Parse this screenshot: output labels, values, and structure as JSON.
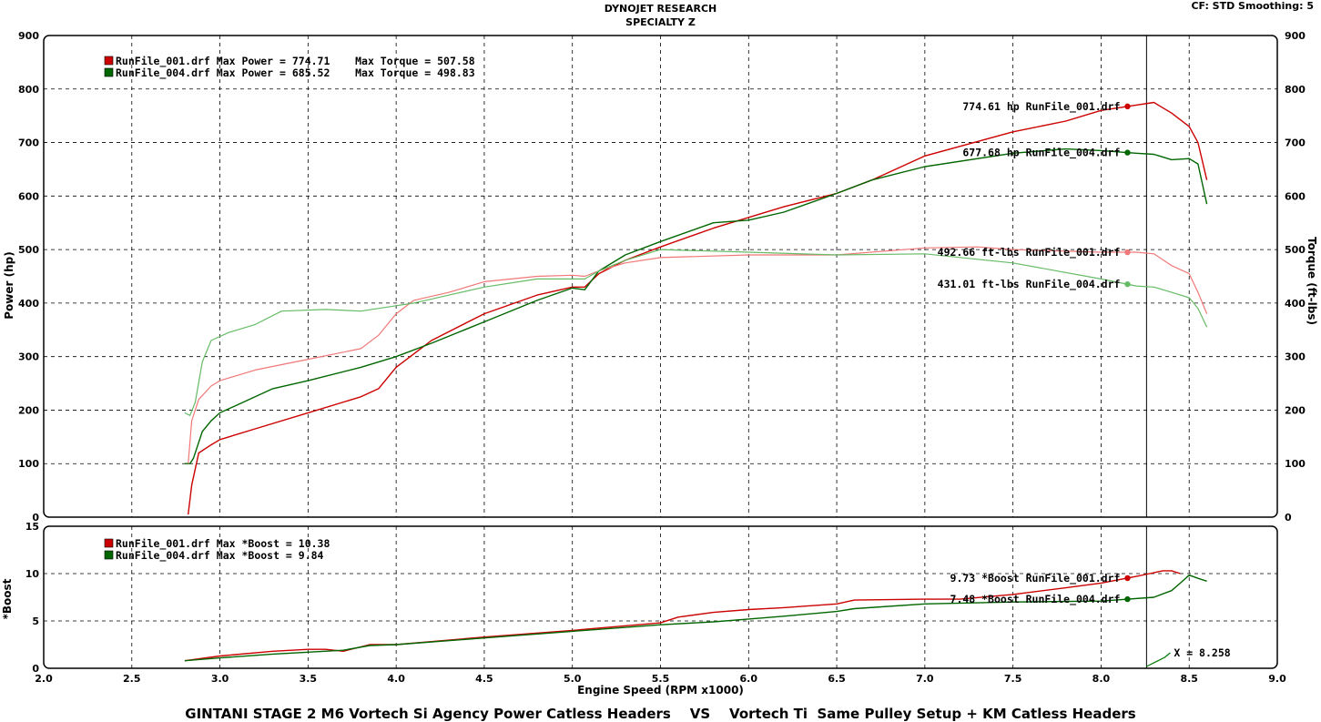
{
  "header": {
    "line1": "DYNOJET RESEARCH",
    "line2": "SPECIALTY Z",
    "settings": "CF: STD  Smoothing: 5"
  },
  "footer": "GINTANI STAGE 2 M6 Vortech Si Agency Power Catless Headers    VS    Vortech Ti  Same Pulley Setup + KM Catless Headers",
  "colors": {
    "run1": "#cc0000",
    "run1_light": "#f07878",
    "run2": "#006600",
    "run2_light": "#66bb66",
    "grid": "#000000"
  },
  "chart_data": [
    {
      "type": "line",
      "name": "power-torque",
      "xlabel": "Engine Speed (RPM x1000)",
      "ylabel": "Power (hp)",
      "y2label": "Torque (ft-lbs)",
      "xlim": [
        2.0,
        9.0
      ],
      "ylim": [
        0,
        900
      ],
      "y2lim": [
        0,
        900
      ],
      "xticks": [
        "2.0",
        "2.5",
        "3.0",
        "3.5",
        "4.0",
        "4.5",
        "5.0",
        "5.5",
        "6.0",
        "6.5",
        "7.0",
        "7.5",
        "8.0",
        "8.5",
        "9.0"
      ],
      "yticks": [
        "0",
        "100",
        "200",
        "300",
        "400",
        "500",
        "600",
        "700",
        "800",
        "900"
      ],
      "grid": true,
      "legend": [
        "RunFile_001.drf Max Power = 774.71    Max Torque = 507.58",
        "RunFile_004.drf Max Power = 685.52    Max Torque = 498.83"
      ],
      "annotations": [
        {
          "text": "774.61 hp RunFile_001.drf",
          "series": "power_001"
        },
        {
          "text": "677.68 hp RunFile_004.drf",
          "series": "power_004"
        },
        {
          "text": "492.66 ft-lbs RunFile_001.drf",
          "series": "torque_001"
        },
        {
          "text": "431.01 ft-lbs RunFile_004.drf",
          "series": "torque_004"
        }
      ],
      "cursor_x": 8.258,
      "series": [
        {
          "name": "power_001",
          "kind": "power",
          "color": "#cc0000",
          "x": [
            2.82,
            2.84,
            2.88,
            2.95,
            3.0,
            3.2,
            3.5,
            3.8,
            3.9,
            4.0,
            4.2,
            4.5,
            4.8,
            5.0,
            5.07,
            5.15,
            5.3,
            5.5,
            5.8,
            6.0,
            6.2,
            6.5,
            6.7,
            7.0,
            7.5,
            7.8,
            8.0,
            8.2,
            8.3,
            8.4,
            8.5,
            8.55,
            8.6
          ],
          "y": [
            5,
            60,
            120,
            135,
            145,
            165,
            195,
            225,
            240,
            280,
            330,
            380,
            415,
            430,
            430,
            455,
            480,
            505,
            540,
            560,
            580,
            605,
            630,
            675,
            720,
            740,
            760,
            770,
            775,
            755,
            730,
            700,
            630
          ]
        },
        {
          "name": "power_004",
          "kind": "power",
          "color": "#006600",
          "x": [
            2.8,
            2.83,
            2.85,
            2.9,
            2.95,
            3.0,
            3.1,
            3.3,
            3.5,
            3.8,
            4.0,
            4.2,
            4.5,
            4.8,
            5.0,
            5.07,
            5.15,
            5.3,
            5.5,
            5.8,
            6.0,
            6.2,
            6.5,
            6.7,
            7.0,
            7.5,
            7.8,
            8.0,
            8.2,
            8.3,
            8.4,
            8.5,
            8.55,
            8.6
          ],
          "y": [
            100,
            100,
            110,
            160,
            180,
            195,
            210,
            240,
            255,
            280,
            300,
            325,
            365,
            405,
            428,
            425,
            460,
            490,
            515,
            550,
            555,
            570,
            605,
            630,
            655,
            680,
            688,
            685,
            680,
            678,
            668,
            670,
            660,
            585
          ]
        },
        {
          "name": "torque_001",
          "kind": "torque",
          "color": "#f07878",
          "x": [
            2.82,
            2.84,
            2.88,
            2.95,
            3.0,
            3.2,
            3.5,
            3.8,
            3.9,
            4.0,
            4.1,
            4.3,
            4.5,
            4.8,
            5.0,
            5.07,
            5.15,
            5.3,
            5.5,
            6.0,
            6.5,
            7.0,
            7.3,
            7.5,
            8.0,
            8.2,
            8.3,
            8.4,
            8.5,
            8.55,
            8.6
          ],
          "y": [
            100,
            180,
            220,
            245,
            255,
            275,
            295,
            315,
            340,
            380,
            405,
            420,
            440,
            450,
            452,
            450,
            460,
            475,
            485,
            490,
            490,
            503,
            505,
            500,
            495,
            495,
            492,
            470,
            455,
            420,
            380
          ]
        },
        {
          "name": "torque_004",
          "kind": "torque",
          "color": "#66bb66",
          "x": [
            2.8,
            2.83,
            2.86,
            2.9,
            2.95,
            3.05,
            3.1,
            3.2,
            3.35,
            3.6,
            3.8,
            4.0,
            4.1,
            4.3,
            4.5,
            4.8,
            5.0,
            5.07,
            5.15,
            5.3,
            5.5,
            6.0,
            6.5,
            7.0,
            7.5,
            8.0,
            8.2,
            8.3,
            8.4,
            8.5,
            8.55,
            8.6
          ],
          "y": [
            195,
            190,
            215,
            290,
            330,
            345,
            350,
            360,
            385,
            388,
            385,
            395,
            400,
            415,
            430,
            445,
            445,
            445,
            460,
            480,
            500,
            495,
            490,
            492,
            475,
            445,
            432,
            430,
            420,
            410,
            390,
            355
          ]
        }
      ]
    },
    {
      "type": "line",
      "name": "boost",
      "ylabel": "*Boost",
      "xlim": [
        2.0,
        9.0
      ],
      "ylim": [
        0,
        15
      ],
      "yticks": [
        "0",
        "5",
        "10",
        "15"
      ],
      "grid": true,
      "legend": [
        "RunFile_001.drf Max *Boost = 10.38",
        "RunFile_004.drf Max *Boost = 9.84"
      ],
      "annotations": [
        {
          "text": "9.73 *Boost RunFile_001.drf",
          "series": "boost_001"
        },
        {
          "text": "7.48 *Boost RunFile_004.drf",
          "series": "boost_004"
        }
      ],
      "cursor_label": "X = 8.258",
      "series": [
        {
          "name": "boost_001",
          "color": "#cc0000",
          "x": [
            2.8,
            3.0,
            3.3,
            3.5,
            3.6,
            3.7,
            3.85,
            4.0,
            4.5,
            5.0,
            5.5,
            5.6,
            5.8,
            6.0,
            6.2,
            6.5,
            6.6,
            7.0,
            7.2,
            7.5,
            7.8,
            8.0,
            8.2,
            8.3,
            8.35,
            8.4,
            8.45
          ],
          "y": [
            0.8,
            1.3,
            1.8,
            2.0,
            2.0,
            1.8,
            2.5,
            2.5,
            3.3,
            4.0,
            4.8,
            5.4,
            5.9,
            6.2,
            6.4,
            6.8,
            7.2,
            7.3,
            7.3,
            7.8,
            8.5,
            9.0,
            9.7,
            10.1,
            10.3,
            10.3,
            10.0
          ]
        },
        {
          "name": "boost_004",
          "color": "#006600",
          "x": [
            2.8,
            3.0,
            3.3,
            3.5,
            3.7,
            3.85,
            4.0,
            4.5,
            5.0,
            5.5,
            5.8,
            6.0,
            6.2,
            6.5,
            6.6,
            7.0,
            7.5,
            8.0,
            8.3,
            8.4,
            8.45,
            8.5,
            8.55,
            8.6
          ],
          "y": [
            0.8,
            1.1,
            1.5,
            1.7,
            1.9,
            2.4,
            2.5,
            3.2,
            3.9,
            4.6,
            4.9,
            5.2,
            5.5,
            6.0,
            6.3,
            6.8,
            7.0,
            7.1,
            7.5,
            8.2,
            9.0,
            9.84,
            9.5,
            9.2
          ]
        }
      ]
    }
  ]
}
